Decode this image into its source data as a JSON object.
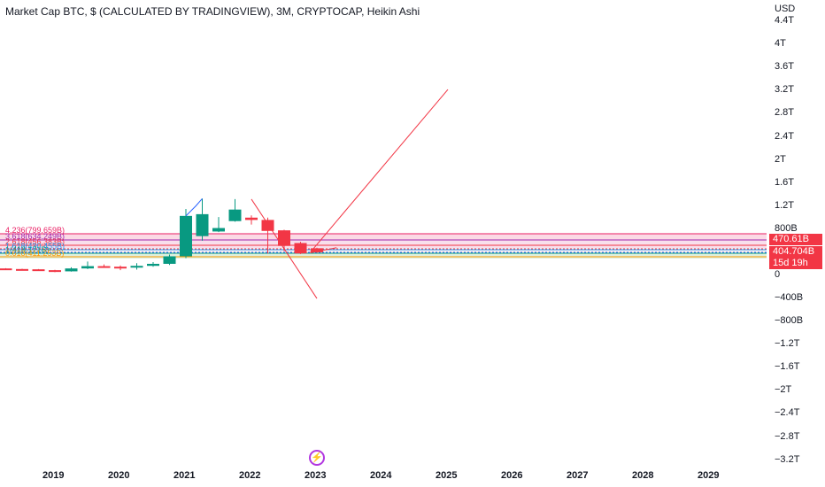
{
  "header": {
    "title": "Market Cap BTC, $ (CALCULATED BY TRADINGVIEW), 3M, CRYPTOCAP, Heikin Ashi"
  },
  "price_axis": {
    "currency": "USD",
    "ticks": [
      "4.4T",
      "4T",
      "3.6T",
      "3.2T",
      "2.8T",
      "2.4T",
      "2T",
      "1.6T",
      "1.2T",
      "800B",
      "0",
      "−400B",
      "−800B",
      "−1.2T",
      "−1.6T",
      "−2T",
      "−2.4T",
      "−2.8T",
      "−3.2T"
    ],
    "tags": [
      {
        "label": "470.61B",
        "color": "#f23645"
      },
      {
        "label": "404.704B",
        "color": "#f23645"
      },
      {
        "label": "15d 19h",
        "color": "#f23645"
      }
    ]
  },
  "time_axis": {
    "ticks": [
      "2019",
      "2020",
      "2021",
      "2022",
      "2023",
      "2024",
      "2025",
      "2026",
      "2027",
      "2028",
      "2029"
    ]
  },
  "fib_levels": [
    {
      "label": "4.236(799.659B)",
      "color": "#e91e63"
    },
    {
      "label": "3.618(634.249B)",
      "color": "#9c27b0"
    },
    {
      "label": "2.618(456.383B)",
      "color": "#f23645"
    },
    {
      "label": "1.618(430.455B)",
      "color": "#2196f3"
    },
    {
      "label": "1(418.171B)",
      "color": "#089981"
    },
    {
      "label": "0.618(411.253B)",
      "color": "#ff9800"
    }
  ],
  "chart_data": {
    "type": "candlestick",
    "style": "Heikin Ashi",
    "interval": "3M",
    "symbol": "Market Cap BTC",
    "candles": [
      {
        "t": 2018.25,
        "o": 120,
        "c": 110,
        "h": 125,
        "l": 100
      },
      {
        "t": 2018.5,
        "o": 110,
        "c": 105,
        "h": 115,
        "l": 95
      },
      {
        "t": 2018.75,
        "o": 105,
        "c": 90,
        "h": 110,
        "l": 80
      },
      {
        "t": 2019.0,
        "o": 90,
        "c": 70,
        "h": 95,
        "l": 55
      },
      {
        "t": 2019.25,
        "o": 70,
        "c": 120,
        "h": 140,
        "l": 65
      },
      {
        "t": 2019.5,
        "o": 120,
        "c": 160,
        "h": 240,
        "l": 110
      },
      {
        "t": 2019.75,
        "o": 160,
        "c": 150,
        "h": 190,
        "l": 130
      },
      {
        "t": 2020.0,
        "o": 150,
        "c": 140,
        "h": 170,
        "l": 90
      },
      {
        "t": 2020.25,
        "o": 140,
        "c": 165,
        "h": 210,
        "l": 100
      },
      {
        "t": 2020.5,
        "o": 165,
        "c": 200,
        "h": 230,
        "l": 150
      },
      {
        "t": 2020.75,
        "o": 200,
        "c": 330,
        "h": 360,
        "l": 180
      },
      {
        "t": 2021.0,
        "o": 330,
        "c": 1030,
        "h": 1150,
        "l": 300
      },
      {
        "t": 2021.25,
        "o": 680,
        "c": 1060,
        "h": 1330,
        "l": 600
      },
      {
        "t": 2021.5,
        "o": 760,
        "c": 820,
        "h": 1010,
        "l": 750
      },
      {
        "t": 2021.75,
        "o": 940,
        "c": 1140,
        "h": 1320,
        "l": 930
      },
      {
        "t": 2022.0,
        "o": 1000,
        "c": 960,
        "h": 1040,
        "l": 880
      },
      {
        "t": 2022.25,
        "o": 960,
        "c": 770,
        "h": 1000,
        "l": 380
      },
      {
        "t": 2022.5,
        "o": 780,
        "c": 510,
        "h": 790,
        "l": 420
      },
      {
        "t": 2022.75,
        "o": 560,
        "c": 380,
        "h": 580,
        "l": 370
      },
      {
        "t": 2023.0,
        "o": 470,
        "c": 400,
        "h": 480,
        "l": 390
      }
    ],
    "annotations": [
      {
        "type": "line",
        "from": {
          "t": 2022.0,
          "v": 1320
        },
        "to": {
          "t": 2023.0,
          "v": -400
        }
      },
      {
        "type": "line",
        "from": {
          "t": 2022.9,
          "v": 400
        },
        "to": {
          "t": 2025.0,
          "v": 3220
        }
      },
      {
        "type": "line",
        "from": {
          "t": 2022.9,
          "v": 390
        },
        "to": {
          "t": 2023.3,
          "v": 480
        }
      }
    ],
    "ylim": [
      -3300,
      4500
    ],
    "xlim": [
      2018.2,
      2030.0
    ]
  }
}
